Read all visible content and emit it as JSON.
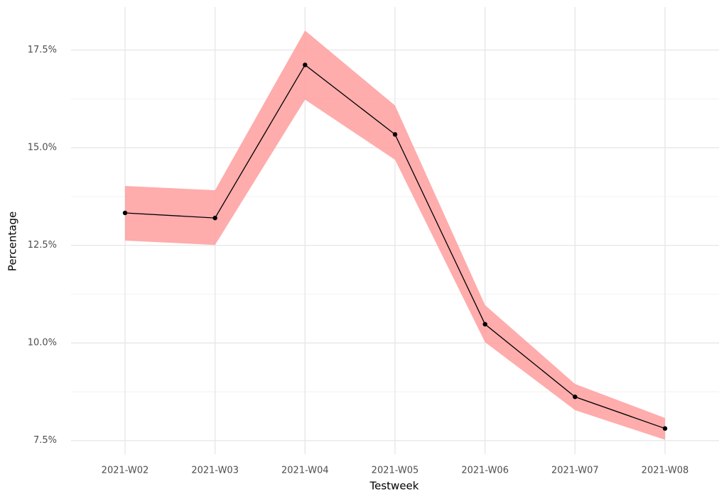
{
  "chart_data": {
    "type": "line",
    "xlabel": "Testweek",
    "ylabel": "Percentage",
    "categories": [
      "2021-W02",
      "2021-W03",
      "2021-W04",
      "2021-W05",
      "2021-W06",
      "2021-W07",
      "2021-W08"
    ],
    "values": [
      13.33,
      13.2,
      17.12,
      15.34,
      10.48,
      8.62,
      7.81
    ],
    "lower": [
      12.62,
      12.51,
      16.23,
      14.69,
      10.02,
      8.28,
      7.52
    ],
    "upper": [
      14.02,
      13.91,
      18.0,
      16.08,
      10.97,
      8.95,
      8.08
    ],
    "color": "#000000",
    "band_color": "#ff9e9e",
    "ylim": [
      7.15,
      18.6
    ],
    "yticks": [
      {
        "value": 7.5,
        "label": "7.5%"
      },
      {
        "value": 10,
        "label": "10.0%"
      },
      {
        "value": 12.5,
        "label": "12.5%"
      },
      {
        "value": 15,
        "label": "15.0%"
      },
      {
        "value": 17.5,
        "label": "17.5%"
      }
    ],
    "minor_yticks": [
      8.75,
      11.25,
      13.75,
      16.25
    ],
    "grid": true
  }
}
